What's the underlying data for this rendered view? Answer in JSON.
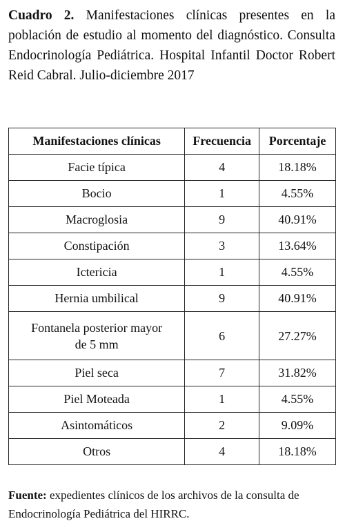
{
  "caption": {
    "label": "Cuadro 2.",
    "text": "Manifestaciones clínicas presentes en la población de estudio al momento del diagnóstico. Consulta Endocrinología Pediátrica. Hospital Infantil Doctor Robert Reid Cabral. Julio-diciembre 2017"
  },
  "table": {
    "headers": [
      "Manifestaciones clínicas",
      "Frecuencia",
      "Porcentaje"
    ],
    "rows": [
      [
        "Facie típica",
        "4",
        "18.18%"
      ],
      [
        "Bocio",
        "1",
        "4.55%"
      ],
      [
        "Macroglosia",
        "9",
        "40.91%"
      ],
      [
        "Constipación",
        "3",
        "13.64%"
      ],
      [
        "Ictericia",
        "1",
        "4.55%"
      ],
      [
        "Hernia umbilical",
        "9",
        "40.91%"
      ],
      [
        "Fontanela posterior mayor de 5 mm",
        "6",
        "27.27%"
      ],
      [
        "Piel seca",
        "7",
        "31.82%"
      ],
      [
        "Piel Moteada",
        "1",
        "4.55%"
      ],
      [
        "Asintomáticos",
        "2",
        "9.09%"
      ],
      [
        "Otros",
        "4",
        "18.18%"
      ]
    ]
  },
  "footer": {
    "label": "Fuente:",
    "text": "expedientes clínicos de los archivos de la consulta de Endocrinología Pediátrica del HIRRC."
  }
}
